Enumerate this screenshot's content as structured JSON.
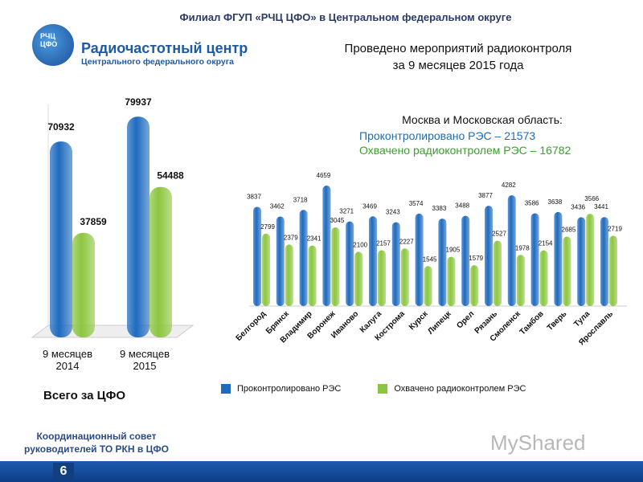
{
  "header": {
    "title": "Филиал ФГУП «РЧЦ ЦФО» в Центральном федеральном округе"
  },
  "logo": {
    "abbr_line1": "РЧЦ",
    "abbr_line2": "ЦФО",
    "name": "Радиочастотный центр",
    "subtitle": "Центрального федерального округа"
  },
  "main_title_line1": "Проведено мероприятий радиоконтроля",
  "main_title_line2": "за 9 месяцев 2015 года",
  "moscow": {
    "title": "Москва и Московская область:",
    "line1": "Проконтролировано РЭС – 21573",
    "line2": "Охвачено радиоконтролем РЭС – 16782"
  },
  "total_label": "Всего за ЦФО",
  "council": {
    "line1": "Координационный совет",
    "line2": "руководителей ТО РКН в ЦФО"
  },
  "page_number": "6",
  "watermark": "MyShared",
  "colors": {
    "blue": "#1f6bc0",
    "green": "#8cc63f",
    "footer": "#1b55a8"
  },
  "chart_data": [
    {
      "type": "bar",
      "categories": [
        "9 месяцев 2014",
        "9 месяцев 2015"
      ],
      "series": [
        {
          "color": "#1f6bc0",
          "values": [
            70932,
            79937
          ]
        },
        {
          "color": "#8cc63f",
          "values": [
            37859,
            54488
          ]
        }
      ],
      "ylim": [
        0,
        80000
      ],
      "grid": false
    },
    {
      "type": "bar",
      "categories": [
        "Белгород",
        "Брянск",
        "Владимир",
        "Воронеж",
        "Иваново",
        "Калуга",
        "Кострома",
        "Курск",
        "Липецк",
        "Орел",
        "Рязань",
        "Смоленск",
        "Тамбов",
        "Тверь",
        "Тула",
        "Ярославль"
      ],
      "series": [
        {
          "name": "Проконтролировано РЭС",
          "color": "#1f6bc0",
          "values": [
            3837,
            3462,
            3718,
            4659,
            3271,
            3469,
            3243,
            3574,
            3383,
            3488,
            3877,
            4282,
            3586,
            3638,
            3436,
            3441
          ]
        },
        {
          "name": "Охвачено радиоконтролем РЭС",
          "color": "#8cc63f",
          "values": [
            2799,
            2379,
            2341,
            3045,
            2100,
            2157,
            2227,
            1545,
            1905,
            1579,
            2527,
            1978,
            2154,
            2685,
            3566,
            2719
          ]
        }
      ],
      "ylim": [
        0,
        5000
      ],
      "grid": false,
      "legend": "bottom"
    }
  ]
}
